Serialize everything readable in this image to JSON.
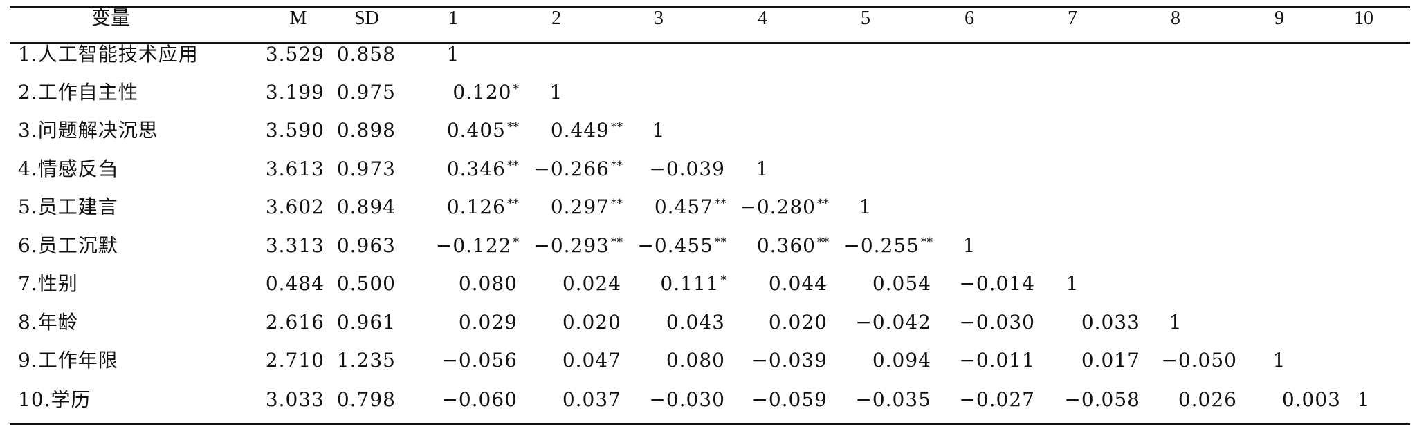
{
  "table": {
    "headers": [
      "变量",
      "M",
      "SD",
      "1",
      "2",
      "3",
      "4",
      "5",
      "6",
      "7",
      "8",
      "9",
      "10"
    ],
    "rows": [
      {
        "label": "1.人工智能技术应用",
        "m": "3.529",
        "sd": "0.858",
        "cells": [
          {
            "v": "1",
            "s": ""
          }
        ]
      },
      {
        "label": "2.工作自主性",
        "m": "3.199",
        "sd": "0.975",
        "cells": [
          {
            "v": "0.120",
            "s": "*"
          },
          {
            "v": "1",
            "s": ""
          }
        ]
      },
      {
        "label": "3.问题解决沉思",
        "m": "3.590",
        "sd": "0.898",
        "cells": [
          {
            "v": "0.405",
            "s": "**"
          },
          {
            "v": "0.449",
            "s": "**"
          },
          {
            "v": "1",
            "s": ""
          }
        ]
      },
      {
        "label": "4.情感反刍",
        "m": "3.613",
        "sd": "0.973",
        "cells": [
          {
            "v": "0.346",
            "s": "**"
          },
          {
            "v": "−0.266",
            "s": "**"
          },
          {
            "v": "−0.039",
            "s": ""
          },
          {
            "v": "1",
            "s": ""
          }
        ]
      },
      {
        "label": "5.员工建言",
        "m": "3.602",
        "sd": "0.894",
        "cells": [
          {
            "v": "0.126",
            "s": "**"
          },
          {
            "v": "0.297",
            "s": "**"
          },
          {
            "v": "0.457",
            "s": "**"
          },
          {
            "v": "−0.280",
            "s": "**"
          },
          {
            "v": "1",
            "s": ""
          }
        ]
      },
      {
        "label": "6.员工沉默",
        "m": "3.313",
        "sd": "0.963",
        "cells": [
          {
            "v": "−0.122",
            "s": "*"
          },
          {
            "v": "−0.293",
            "s": "**"
          },
          {
            "v": "−0.455",
            "s": "**"
          },
          {
            "v": "0.360",
            "s": "**"
          },
          {
            "v": "−0.255",
            "s": "**"
          },
          {
            "v": "1",
            "s": ""
          }
        ]
      },
      {
        "label": "7.性别",
        "m": "0.484",
        "sd": "0.500",
        "cells": [
          {
            "v": "0.080",
            "s": ""
          },
          {
            "v": "0.024",
            "s": ""
          },
          {
            "v": "0.111",
            "s": "*"
          },
          {
            "v": "0.044",
            "s": ""
          },
          {
            "v": "0.054",
            "s": ""
          },
          {
            "v": "−0.014",
            "s": ""
          },
          {
            "v": "1",
            "s": ""
          }
        ]
      },
      {
        "label": "8.年龄",
        "m": "2.616",
        "sd": "0.961",
        "cells": [
          {
            "v": "0.029",
            "s": ""
          },
          {
            "v": "0.020",
            "s": ""
          },
          {
            "v": "0.043",
            "s": ""
          },
          {
            "v": "0.020",
            "s": ""
          },
          {
            "v": "−0.042",
            "s": ""
          },
          {
            "v": "−0.030",
            "s": ""
          },
          {
            "v": "0.033",
            "s": ""
          },
          {
            "v": "1",
            "s": ""
          }
        ]
      },
      {
        "label": "9.工作年限",
        "m": "2.710",
        "sd": "1.235",
        "cells": [
          {
            "v": "−0.056",
            "s": ""
          },
          {
            "v": "0.047",
            "s": ""
          },
          {
            "v": "0.080",
            "s": ""
          },
          {
            "v": "−0.039",
            "s": ""
          },
          {
            "v": "0.094",
            "s": ""
          },
          {
            "v": "−0.011",
            "s": ""
          },
          {
            "v": "0.017",
            "s": ""
          },
          {
            "v": "−0.050",
            "s": ""
          },
          {
            "v": "1",
            "s": ""
          }
        ]
      },
      {
        "label": "10.学历",
        "m": "3.033",
        "sd": "0.798",
        "cells": [
          {
            "v": "−0.060",
            "s": ""
          },
          {
            "v": "0.037",
            "s": ""
          },
          {
            "v": "−0.030",
            "s": ""
          },
          {
            "v": "−0.059",
            "s": ""
          },
          {
            "v": "−0.035",
            "s": ""
          },
          {
            "v": "−0.027",
            "s": ""
          },
          {
            "v": "−0.058",
            "s": ""
          },
          {
            "v": "0.026",
            "s": ""
          },
          {
            "v": "0.003",
            "s": ""
          },
          {
            "v": "1",
            "s": ""
          }
        ]
      }
    ]
  }
}
